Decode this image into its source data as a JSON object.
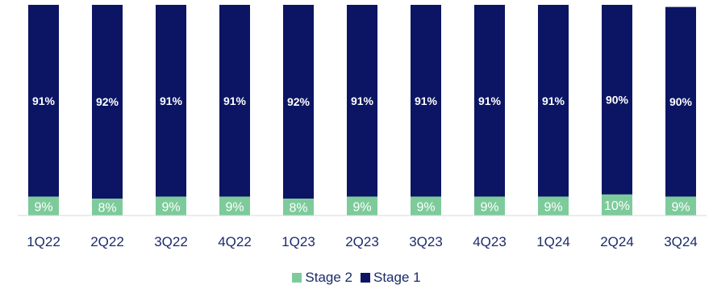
{
  "chart_data": {
    "type": "bar",
    "stacked": true,
    "normalized": true,
    "categories": [
      "1Q22",
      "2Q22",
      "3Q22",
      "4Q22",
      "1Q23",
      "2Q23",
      "3Q23",
      "4Q23",
      "1Q24",
      "2Q24",
      "3Q24"
    ],
    "series": [
      {
        "name": "Stage 2",
        "color": "#7dcb9b",
        "values": [
          9,
          8,
          9,
          9,
          8,
          9,
          9,
          9,
          9,
          10,
          9
        ],
        "labels": [
          "9%",
          "8%",
          "9%",
          "9%",
          "8%",
          "9%",
          "9%",
          "9%",
          "9%",
          "10%",
          "9%"
        ]
      },
      {
        "name": "Stage 1",
        "color": "#0b1563",
        "values": [
          91,
          92,
          91,
          91,
          92,
          91,
          91,
          91,
          91,
          90,
          90
        ],
        "labels": [
          "91%",
          "92%",
          "91%",
          "91%",
          "92%",
          "91%",
          "91%",
          "91%",
          "91%",
          "90%",
          "90%"
        ]
      }
    ],
    "ylim": [
      0,
      100
    ],
    "legend_position": "bottom"
  }
}
